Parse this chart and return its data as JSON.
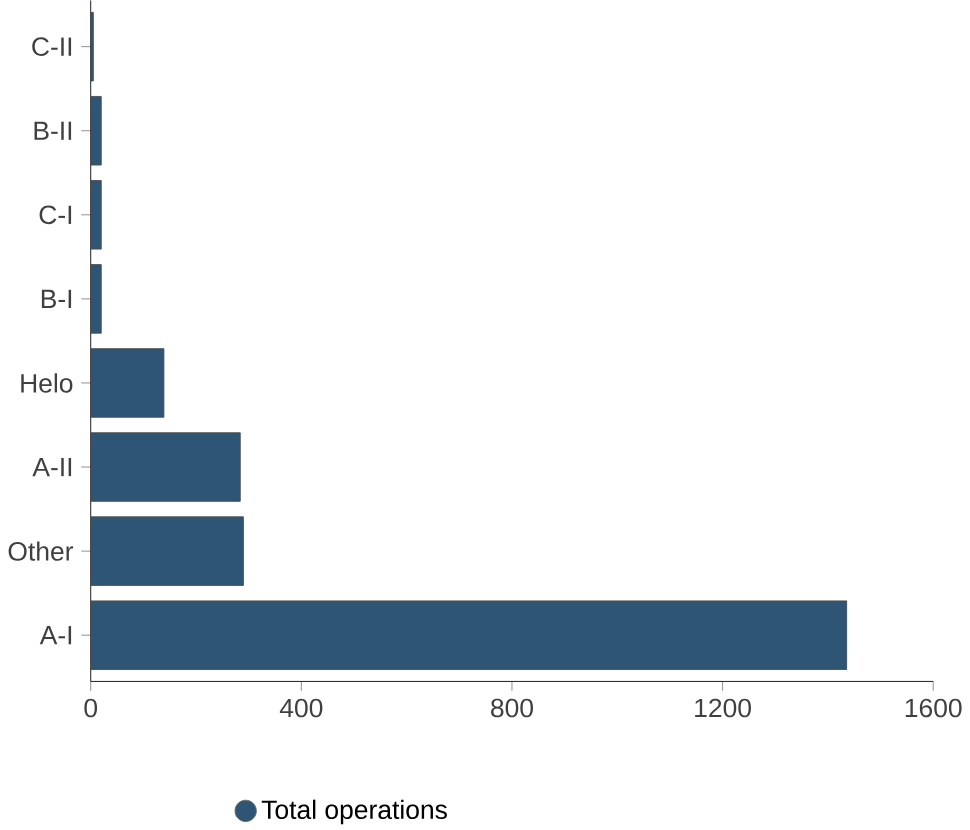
{
  "chart_data": {
    "type": "bar",
    "orientation": "horizontal",
    "categories": [
      "C-II",
      "B-II",
      "C-I",
      "B-I",
      "Helo",
      "A-II",
      "Other",
      "A-I"
    ],
    "series": [
      {
        "name": "Total operations",
        "color": "#2f5574",
        "values": [
          5,
          20,
          20,
          20,
          139,
          284,
          290,
          1436
        ]
      }
    ],
    "xlim": [
      0,
      1600
    ],
    "xticks": [
      0,
      400,
      800,
      1200,
      1600
    ],
    "grid": false,
    "legend": "bottom"
  }
}
